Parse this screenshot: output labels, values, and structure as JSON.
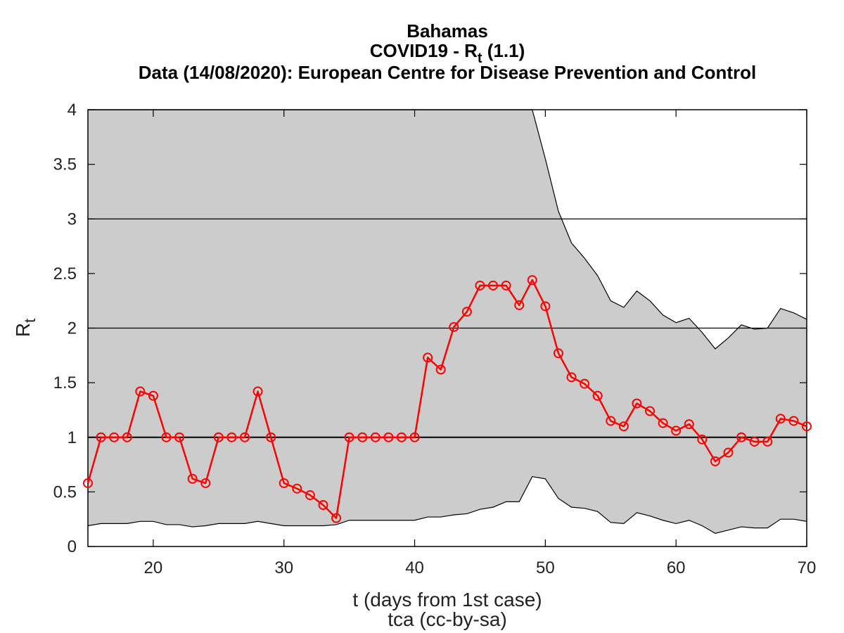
{
  "chart_data": {
    "type": "line",
    "title_lines": [
      "Bahamas",
      "COVID19 - R",
      "Data (14/08/2020): European Centre for Disease Prevention and Control"
    ],
    "title_subscript": "t",
    "title_suffix": " (1.1)",
    "xlabel": "t (days from 1st case)",
    "credit": "tca (cc-by-sa)",
    "ylabel_main": "R",
    "ylabel_sub": "t",
    "xlim": [
      15,
      70
    ],
    "ylim": [
      0,
      4
    ],
    "xticks": [
      20,
      30,
      40,
      50,
      60,
      70
    ],
    "yticks": [
      0,
      0.5,
      1,
      1.5,
      2,
      2.5,
      3,
      3.5,
      4
    ],
    "ytick_labels": [
      "0",
      "0.5",
      "1",
      "1.5",
      "2",
      "2.5",
      "3",
      "3.5",
      "4"
    ],
    "grid_y": [
      1,
      2,
      3
    ],
    "reference_line_y": 1,
    "colors": {
      "series": "#ff0000",
      "band": "#cccccc",
      "grid": "#000000"
    },
    "series": [
      {
        "x": [
          15,
          16,
          17,
          18,
          19,
          20,
          21,
          22,
          23,
          24,
          25,
          26,
          27,
          28,
          29,
          30,
          31,
          32,
          33,
          34,
          35,
          36,
          37,
          38,
          39,
          40,
          41,
          42,
          43,
          44,
          45,
          46,
          47,
          48,
          49,
          50,
          51,
          52,
          53,
          54,
          55,
          56,
          57,
          58,
          59,
          60,
          61,
          62,
          63,
          64,
          65,
          66,
          67,
          68,
          69,
          70
        ],
        "values": [
          0.58,
          1.0,
          1.0,
          1.0,
          1.42,
          1.38,
          1.0,
          1.0,
          0.62,
          0.58,
          1.0,
          1.0,
          1.0,
          1.42,
          1.0,
          0.58,
          0.53,
          0.47,
          0.38,
          0.26,
          1.0,
          1.0,
          1.0,
          1.0,
          1.0,
          1.0,
          1.73,
          1.62,
          2.01,
          2.15,
          2.39,
          2.39,
          2.39,
          2.21,
          2.44,
          2.2,
          1.77,
          1.55,
          1.49,
          1.38,
          1.15,
          1.1,
          1.31,
          1.24,
          1.13,
          1.06,
          1.12,
          0.98,
          0.78,
          0.86,
          1.0,
          0.96,
          0.96,
          1.17,
          1.15,
          1.1
        ]
      }
    ],
    "confidence_band": {
      "x": [
        15,
        16,
        17,
        18,
        19,
        20,
        21,
        22,
        23,
        24,
        25,
        26,
        27,
        28,
        29,
        30,
        31,
        32,
        33,
        34,
        35,
        36,
        37,
        38,
        39,
        40,
        41,
        42,
        43,
        44,
        45,
        46,
        47,
        48,
        49,
        50,
        51,
        52,
        53,
        54,
        55,
        56,
        57,
        58,
        59,
        60,
        61,
        62,
        63,
        64,
        65,
        66,
        67,
        68,
        69,
        70
      ],
      "upper": [
        4,
        4,
        4,
        4,
        4,
        4,
        4,
        4,
        4,
        4,
        4,
        4,
        4,
        4,
        4,
        4,
        4,
        4,
        4,
        4,
        4,
        4,
        4,
        4,
        4,
        4,
        4,
        4,
        4,
        4,
        4,
        4,
        4,
        4,
        4,
        3.55,
        3.07,
        2.78,
        2.64,
        2.48,
        2.25,
        2.19,
        2.34,
        2.25,
        2.12,
        2.05,
        2.09,
        1.96,
        1.81,
        1.91,
        2.03,
        1.99,
        2.0,
        2.18,
        2.14,
        2.08
      ],
      "lower": [
        0.19,
        0.21,
        0.21,
        0.21,
        0.23,
        0.23,
        0.2,
        0.2,
        0.18,
        0.19,
        0.21,
        0.21,
        0.21,
        0.23,
        0.21,
        0.19,
        0.19,
        0.19,
        0.19,
        0.2,
        0.24,
        0.24,
        0.24,
        0.24,
        0.24,
        0.24,
        0.27,
        0.27,
        0.29,
        0.3,
        0.34,
        0.36,
        0.41,
        0.41,
        0.64,
        0.62,
        0.44,
        0.36,
        0.35,
        0.32,
        0.22,
        0.21,
        0.31,
        0.28,
        0.24,
        0.21,
        0.24,
        0.19,
        0.12,
        0.15,
        0.18,
        0.17,
        0.17,
        0.25,
        0.25,
        0.23
      ]
    }
  }
}
